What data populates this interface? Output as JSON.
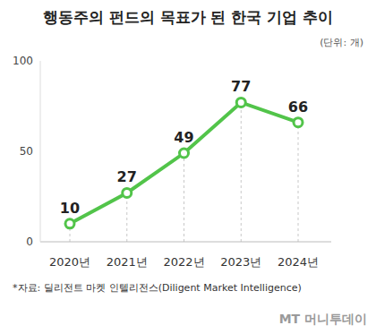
{
  "chart_data": {
    "type": "line",
    "title": "행동주의 펀드의 목표가 된 한국 기업 추이",
    "subtitle": "(단위: 개)",
    "categories": [
      "2020년",
      "2021년",
      "2022년",
      "2023년",
      "2024년"
    ],
    "values": [
      10,
      27,
      49,
      77,
      66
    ],
    "color": "#52c44a",
    "marker": "circle",
    "ylim": [
      0,
      100
    ],
    "yticks": [
      0,
      50,
      100
    ],
    "grid": false,
    "data_labels": true,
    "annotations": [
      "*자료: 딜리전트 마켓 인텔리전스(Diligent Market Intelligence)",
      "MT 머니투데이"
    ]
  }
}
